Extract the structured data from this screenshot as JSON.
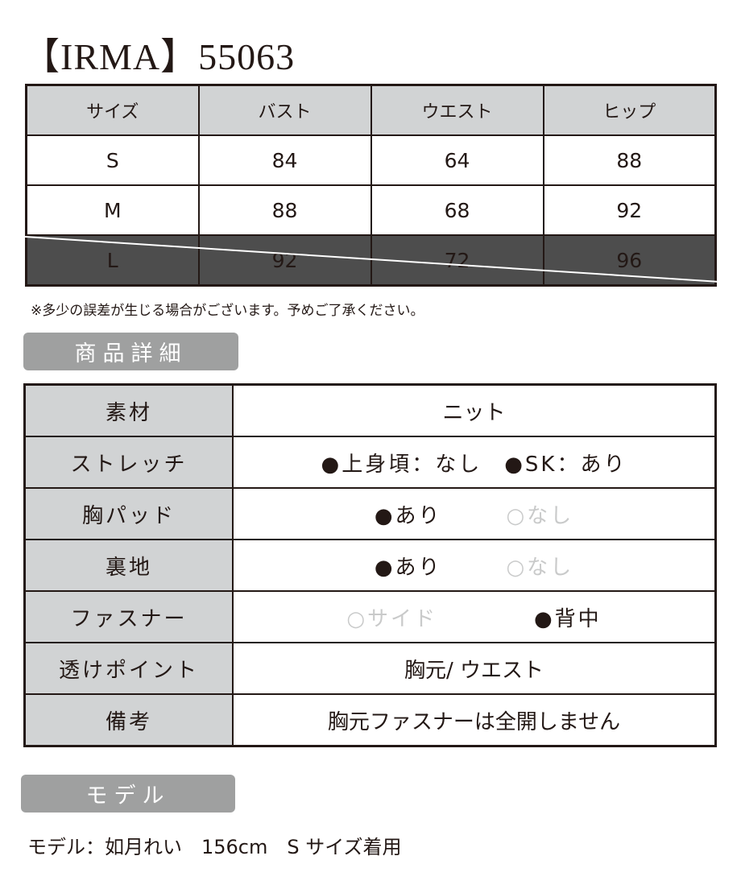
{
  "title": "【IRMA】55063",
  "size_table": {
    "headers": [
      "サイズ",
      "バスト",
      "ウエスト",
      "ヒップ"
    ],
    "rows": [
      [
        "S",
        "84",
        "64",
        "88"
      ],
      [
        "M",
        "88",
        "68",
        "92"
      ],
      [
        "L",
        "92",
        "72",
        "96"
      ]
    ],
    "unavailable_row": "L"
  },
  "note": "※多少の誤差が生じる場合がございます。予めご了承ください。",
  "details_label": "商品詳細",
  "details": [
    {
      "key": "素材",
      "value": "ニット"
    },
    {
      "key": "ストレッチ",
      "options": [
        {
          "text": "●上身頃：なし",
          "on": true
        },
        {
          "text": "●SK：あり",
          "on": true
        }
      ]
    },
    {
      "key": "胸パッド",
      "options": [
        {
          "text": "●あり",
          "on": true
        },
        {
          "text": "○なし",
          "on": false
        }
      ]
    },
    {
      "key": "裏地",
      "options": [
        {
          "text": "●あり",
          "on": true
        },
        {
          "text": "○なし",
          "on": false
        }
      ]
    },
    {
      "key": "ファスナー",
      "options": [
        {
          "text": "○サイド",
          "on": false
        },
        {
          "text": "●背中",
          "on": true
        }
      ]
    },
    {
      "key": "透けポイント",
      "value": "胸元/ ウエスト"
    },
    {
      "key": "備考",
      "value": "胸元ファスナーは全開しません"
    }
  ],
  "model_label": "モデル",
  "model_info": "モデル：如月れい　156cm　S サイズ着用",
  "colors": {
    "header_gray": "#d1d3d4",
    "pill_gray": "#9fa0a0",
    "dark_row": "#4d4d4d",
    "inactive": "#c9caca"
  }
}
